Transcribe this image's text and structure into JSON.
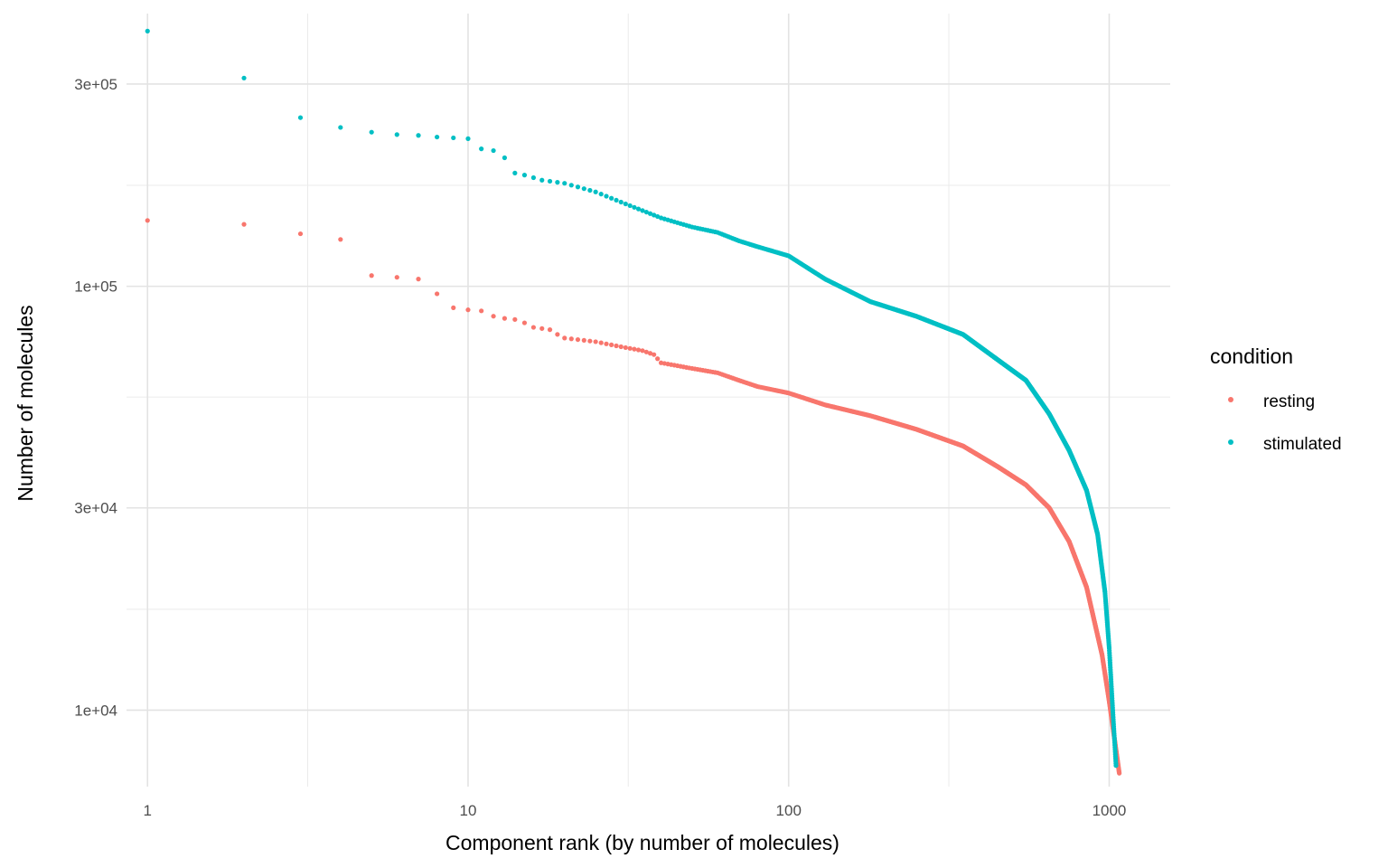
{
  "chart_data": {
    "type": "scatter",
    "title": "",
    "xlabel": "Component rank (by number of molecules)",
    "ylabel": "Number of molecules",
    "x_scale": "log10",
    "y_scale": "log10",
    "xlim": [
      0.86,
      1550
    ],
    "ylim": [
      6600,
      440000
    ],
    "x_ticks": [
      {
        "value": 1,
        "label": "1"
      },
      {
        "value": 10,
        "label": "10"
      },
      {
        "value": 100,
        "label": "100"
      },
      {
        "value": 1000,
        "label": "1000"
      }
    ],
    "x_minor_ticks": [
      3.16,
      31.6,
      316
    ],
    "y_ticks": [
      {
        "value": 10000,
        "label": "1e+04"
      },
      {
        "value": 30000,
        "label": "3e+04"
      },
      {
        "value": 100000,
        "label": "1e+05"
      },
      {
        "value": 300000,
        "label": "3e+05"
      }
    ],
    "y_minor_ticks": [
      17300,
      54800,
      173000
    ],
    "grid": true,
    "legend": {
      "title": "condition",
      "position": "right"
    },
    "series": [
      {
        "name": "resting",
        "color": "#F8766D",
        "n_points": 1075,
        "anchors": [
          [
            1,
            143000
          ],
          [
            2,
            140000
          ],
          [
            3,
            133000
          ],
          [
            4,
            129000
          ],
          [
            5,
            106000
          ],
          [
            6,
            105000
          ],
          [
            7,
            104000
          ],
          [
            8,
            96000
          ],
          [
            9,
            89000
          ],
          [
            10,
            88000
          ],
          [
            11,
            87500
          ],
          [
            12,
            85000
          ],
          [
            13,
            84000
          ],
          [
            14,
            83500
          ],
          [
            15,
            82000
          ],
          [
            16,
            80000
          ],
          [
            17,
            79500
          ],
          [
            18,
            79000
          ],
          [
            19,
            77000
          ],
          [
            20,
            75500
          ],
          [
            25,
            74000
          ],
          [
            30,
            72000
          ],
          [
            35,
            70500
          ],
          [
            38,
            69000
          ],
          [
            40,
            66000
          ],
          [
            50,
            64000
          ],
          [
            60,
            62500
          ],
          [
            70,
            60000
          ],
          [
            80,
            58000
          ],
          [
            100,
            56000
          ],
          [
            130,
            52500
          ],
          [
            180,
            49500
          ],
          [
            250,
            46000
          ],
          [
            350,
            42000
          ],
          [
            450,
            37500
          ],
          [
            550,
            34000
          ],
          [
            650,
            30000
          ],
          [
            750,
            25000
          ],
          [
            850,
            19500
          ],
          [
            950,
            13500
          ],
          [
            1000,
            10500
          ],
          [
            1040,
            8500
          ],
          [
            1075,
            7100
          ]
        ]
      },
      {
        "name": "stimulated",
        "color": "#00BFC4",
        "n_points": 1050,
        "anchors": [
          [
            1,
            400000
          ],
          [
            2,
            310000
          ],
          [
            3,
            250000
          ],
          [
            4,
            237000
          ],
          [
            5,
            231000
          ],
          [
            6,
            228000
          ],
          [
            7,
            227000
          ],
          [
            8,
            225000
          ],
          [
            9,
            224000
          ],
          [
            10,
            223000
          ],
          [
            11,
            211000
          ],
          [
            12,
            209000
          ],
          [
            13,
            201000
          ],
          [
            14,
            185000
          ],
          [
            15,
            183000
          ],
          [
            17,
            178000
          ],
          [
            20,
            175000
          ],
          [
            25,
            167000
          ],
          [
            30,
            158000
          ],
          [
            40,
            145000
          ],
          [
            50,
            138000
          ],
          [
            60,
            134000
          ],
          [
            70,
            128000
          ],
          [
            80,
            124000
          ],
          [
            100,
            118000
          ],
          [
            130,
            104000
          ],
          [
            180,
            92000
          ],
          [
            250,
            85000
          ],
          [
            350,
            77000
          ],
          [
            450,
            67000
          ],
          [
            550,
            60000
          ],
          [
            650,
            50000
          ],
          [
            750,
            41000
          ],
          [
            850,
            33000
          ],
          [
            920,
            26000
          ],
          [
            970,
            19000
          ],
          [
            1000,
            14000
          ],
          [
            1030,
            9500
          ],
          [
            1050,
            7400
          ]
        ]
      }
    ]
  }
}
